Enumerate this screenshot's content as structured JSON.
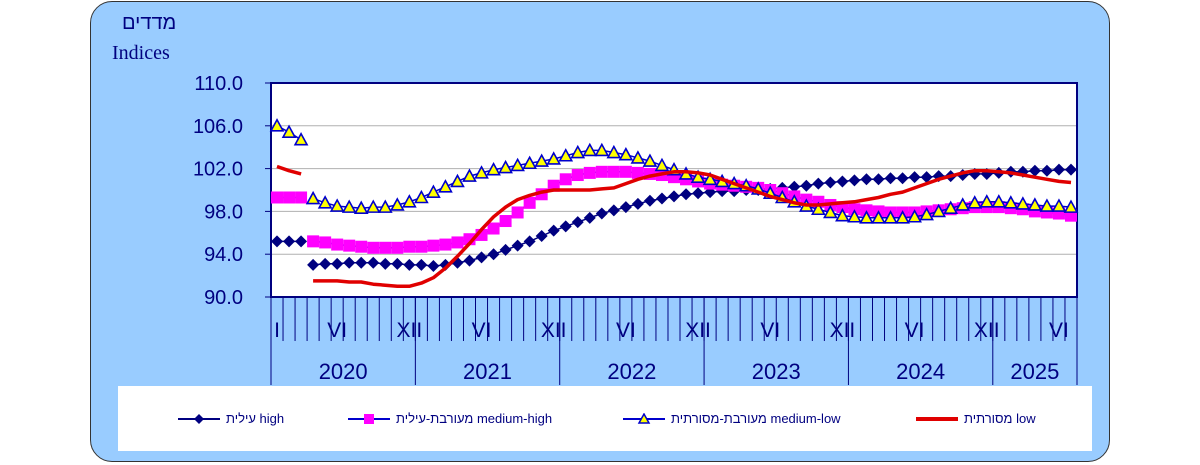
{
  "y_axis_label_hebrew": "מדדים",
  "y_axis_label_english": "Indices",
  "chart_data": {
    "type": "line",
    "title": "",
    "ylabel": "Indices",
    "ylim": [
      90,
      110
    ],
    "yticks": [
      "110.0",
      "106.0",
      "102.0",
      "98.0",
      "94.0",
      "90.0"
    ],
    "ytick_values": [
      110,
      106,
      102,
      98,
      94,
      90
    ],
    "grid": true,
    "legend_position": "bottom",
    "x_start": "2020-01",
    "months_count": 67,
    "month_tick_labels": [
      {
        "month_index": 0,
        "label": "I"
      },
      {
        "month_index": 5,
        "label": "VI"
      },
      {
        "month_index": 11,
        "label": "XII"
      },
      {
        "month_index": 17,
        "label": "VI"
      },
      {
        "month_index": 23,
        "label": "XII"
      },
      {
        "month_index": 29,
        "label": "VI"
      },
      {
        "month_index": 35,
        "label": "XII"
      },
      {
        "month_index": 41,
        "label": "VI"
      },
      {
        "month_index": 47,
        "label": "XII"
      },
      {
        "month_index": 53,
        "label": "VI"
      },
      {
        "month_index": 59,
        "label": "XII"
      },
      {
        "month_index": 65,
        "label": "VI"
      }
    ],
    "years": [
      {
        "label": "2020",
        "start": 0,
        "months": 12
      },
      {
        "label": "2021",
        "start": 12,
        "months": 12
      },
      {
        "label": "2022",
        "start": 24,
        "months": 12
      },
      {
        "label": "2023",
        "start": 36,
        "months": 12
      },
      {
        "label": "2024",
        "start": 48,
        "months": 12
      },
      {
        "label": "2025",
        "start": 60,
        "months": 7
      }
    ],
    "break_after_index": 2,
    "series": [
      {
        "name": "עילית high",
        "key": "high",
        "color": "#000080",
        "marker": "diamond",
        "values": [
          95.2,
          95.2,
          95.2,
          93.0,
          93.1,
          93.1,
          93.2,
          93.2,
          93.2,
          93.1,
          93.1,
          93.0,
          93.0,
          92.9,
          93.0,
          93.2,
          93.4,
          93.7,
          94.0,
          94.4,
          94.8,
          95.2,
          95.7,
          96.2,
          96.6,
          97.0,
          97.4,
          97.8,
          98.1,
          98.4,
          98.7,
          99.0,
          99.2,
          99.4,
          99.6,
          99.7,
          99.8,
          99.9,
          99.9,
          100.0,
          100.0,
          100.1,
          100.2,
          100.3,
          100.4,
          100.6,
          100.7,
          100.8,
          100.9,
          101.0,
          101.0,
          101.1,
          101.1,
          101.2,
          101.2,
          101.3,
          101.3,
          101.4,
          101.5,
          101.5,
          101.6,
          101.7,
          101.7,
          101.8,
          101.8,
          101.9,
          101.9
        ]
      },
      {
        "name": "מעורבת-עילית medium-high",
        "key": "medium_high",
        "color": "#ff00ff",
        "marker": "square",
        "values": [
          99.3,
          99.3,
          99.3,
          95.2,
          95.1,
          94.9,
          94.8,
          94.7,
          94.6,
          94.6,
          94.6,
          94.7,
          94.7,
          94.8,
          94.9,
          95.1,
          95.4,
          95.8,
          96.4,
          97.1,
          97.9,
          98.8,
          99.6,
          100.4,
          101.0,
          101.4,
          101.6,
          101.7,
          101.7,
          101.7,
          101.6,
          101.5,
          101.4,
          101.2,
          101.0,
          100.8,
          100.6,
          100.5,
          100.4,
          100.3,
          100.2,
          100.0,
          99.7,
          99.4,
          99.1,
          98.9,
          98.6,
          98.4,
          98.2,
          98.1,
          98.0,
          97.9,
          97.9,
          97.9,
          98.0,
          98.1,
          98.2,
          98.3,
          98.4,
          98.4,
          98.4,
          98.3,
          98.2,
          98.0,
          97.9,
          97.8,
          97.6
        ]
      },
      {
        "name": "מעורבת-מסורתית medium-low",
        "key": "medium_low",
        "color": "#0000cc",
        "marker": "triangle",
        "values": [
          106.0,
          105.4,
          104.7,
          99.2,
          98.8,
          98.5,
          98.4,
          98.3,
          98.4,
          98.4,
          98.6,
          98.9,
          99.3,
          99.8,
          100.3,
          100.8,
          101.3,
          101.6,
          101.9,
          102.1,
          102.3,
          102.5,
          102.7,
          102.9,
          103.2,
          103.5,
          103.7,
          103.7,
          103.5,
          103.3,
          103.0,
          102.7,
          102.3,
          101.9,
          101.5,
          101.2,
          101.0,
          100.8,
          100.6,
          100.4,
          100.1,
          99.7,
          99.3,
          98.9,
          98.5,
          98.2,
          97.9,
          97.6,
          97.5,
          97.4,
          97.4,
          97.4,
          97.4,
          97.5,
          97.7,
          98.0,
          98.3,
          98.6,
          98.8,
          98.9,
          98.9,
          98.8,
          98.7,
          98.6,
          98.5,
          98.5,
          98.4
        ]
      },
      {
        "name": "מסורתית low",
        "key": "low",
        "color": "#e00000",
        "marker": "none",
        "values": [
          102.2,
          101.8,
          101.5,
          91.5,
          91.5,
          91.5,
          91.4,
          91.4,
          91.2,
          91.1,
          91.0,
          91.0,
          91.3,
          91.8,
          92.7,
          93.8,
          95.0,
          96.3,
          97.5,
          98.4,
          99.1,
          99.5,
          99.8,
          100.0,
          100.0,
          100.0,
          100.0,
          100.1,
          100.2,
          100.6,
          101.0,
          101.3,
          101.5,
          101.7,
          101.7,
          101.6,
          101.4,
          101.0,
          100.6,
          100.2,
          99.8,
          99.4,
          99.1,
          98.8,
          98.6,
          98.6,
          98.7,
          98.8,
          98.9,
          99.1,
          99.3,
          99.6,
          99.8,
          100.2,
          100.6,
          101.0,
          101.3,
          101.6,
          101.8,
          101.8,
          101.7,
          101.6,
          101.4,
          101.2,
          101.0,
          100.8,
          100.7
        ]
      }
    ]
  },
  "legend": [
    {
      "key": "high",
      "label": "עילית high"
    },
    {
      "key": "medium_high",
      "label": "מעורבת-עילית medium-high"
    },
    {
      "key": "medium_low",
      "label": "מעורבת-מסורתית medium-low"
    },
    {
      "key": "low",
      "label": "מסורתית low"
    }
  ]
}
